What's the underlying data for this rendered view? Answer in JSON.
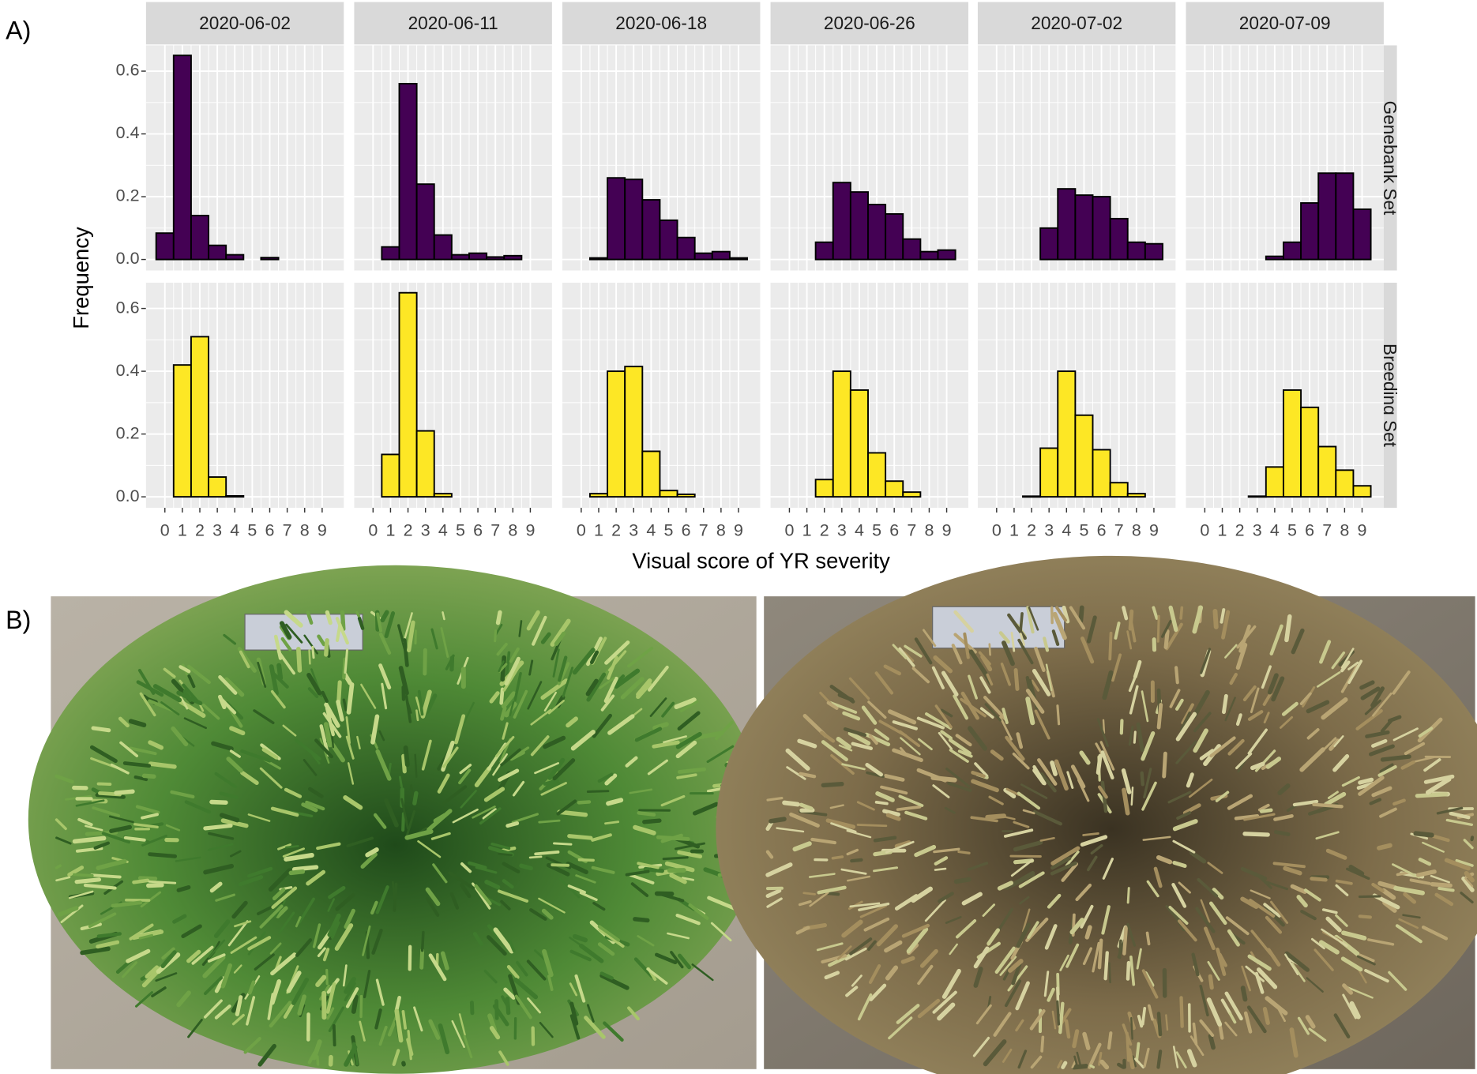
{
  "chart_data": {
    "type": "histogram",
    "panel_label": "A)",
    "xlabel": "Visual score of YR severity",
    "ylabel": "Frequency",
    "bins": [
      -0.5,
      0.5,
      1.5,
      2.5,
      3.5,
      4.5,
      5.5,
      6.5,
      7.5,
      8.5,
      9.5
    ],
    "xlim": [
      -1.08,
      10.24
    ],
    "xticks": [
      0,
      1,
      2,
      3,
      4,
      5,
      6,
      7,
      8,
      9
    ],
    "ylim": [
      -0.035,
      0.682
    ],
    "yticks": [
      {
        "value": 0,
        "label": "0.0"
      },
      0.2,
      0.4,
      0.6
    ],
    "grid": true,
    "columns": [
      "2020-06-02",
      "2020-06-11",
      "2020-06-18",
      "2020-06-26",
      "2020-07-02",
      "2020-07-09"
    ],
    "rows": [
      {
        "name": "Genebank Set",
        "color": "#440154",
        "values": [
          [
            0.084,
            0.65,
            0.14,
            0.045,
            0.015,
            null,
            0.006,
            null,
            null,
            null
          ],
          [
            null,
            0.04,
            0.56,
            0.24,
            0.078,
            0.015,
            0.02,
            0.008,
            0.012,
            null
          ],
          [
            null,
            0.005,
            0.26,
            0.255,
            0.19,
            0.125,
            0.07,
            0.02,
            0.025,
            0.005
          ],
          [
            null,
            null,
            0.055,
            0.245,
            0.215,
            0.175,
            0.145,
            0.065,
            0.025,
            0.03
          ],
          [
            null,
            null,
            null,
            0.1,
            0.225,
            0.205,
            0.2,
            0.13,
            0.055,
            0.05
          ],
          [
            null,
            null,
            null,
            null,
            0.01,
            0.055,
            0.18,
            0.275,
            0.275,
            0.16
          ]
        ]
      },
      {
        "name": "Breeding Set",
        "color": "#fde725",
        "values": [
          [
            null,
            0.42,
            0.51,
            0.063,
            0.003,
            null,
            null,
            null,
            null,
            null
          ],
          [
            null,
            0.135,
            0.65,
            0.21,
            0.01,
            null,
            null,
            null,
            null,
            null
          ],
          [
            null,
            0.01,
            0.4,
            0.415,
            0.145,
            0.02,
            0.008,
            null,
            null,
            null
          ],
          [
            null,
            null,
            0.055,
            0.4,
            0.34,
            0.14,
            0.05,
            0.015,
            null,
            null
          ],
          [
            null,
            null,
            0.002,
            0.155,
            0.4,
            0.26,
            0.15,
            0.045,
            0.01,
            null
          ],
          [
            null,
            null,
            null,
            0.002,
            0.095,
            0.34,
            0.285,
            0.16,
            0.085,
            0.035
          ]
        ]
      }
    ]
  },
  "photos": {
    "panel_label": "B)"
  }
}
